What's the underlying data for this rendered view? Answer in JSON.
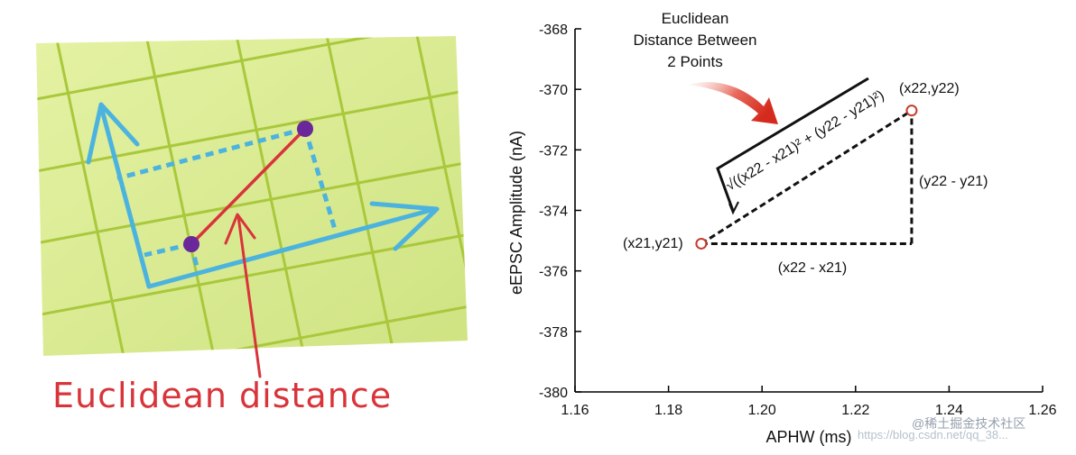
{
  "left_panel": {
    "caption": "Euclidean distance",
    "colors": {
      "paper": "#d7ea8f",
      "grid": "#a9c83c",
      "axes": "#4cb3df",
      "dots": "#69279a",
      "line": "#d8343a",
      "caption": "#d8343a"
    }
  },
  "right_panel": {
    "annotation_lines": [
      "Euclidean",
      "Distance Between",
      "2 Points"
    ],
    "point1_label": "(x21,y21)",
    "point2_label": "(x22,y22)",
    "dx_label": "(x22 - x21)",
    "dy_label": "(y22 - y21)",
    "formula_text": "√((x22 - x21)² + (y22 - y21)²)",
    "colors": {
      "point": "#c83a2c",
      "arrow": "#d6372b",
      "dash": "#111111"
    }
  },
  "chart_data": {
    "type": "scatter",
    "xlabel": "APHW (ms)",
    "ylabel": "eEPSC Amplitude (nA)",
    "xlim": [
      1.16,
      1.26
    ],
    "ylim": [
      -380,
      -368
    ],
    "xticks": [
      "1.16",
      "1.18",
      "1.20",
      "1.22",
      "1.24",
      "1.26"
    ],
    "yticks": [
      "-368",
      "-370",
      "-372",
      "-374",
      "-376",
      "-378",
      "-380"
    ],
    "points": [
      {
        "label": "(x21,y21)",
        "x": 1.187,
        "y": -375.1
      },
      {
        "label": "(x22,y22)",
        "x": 1.232,
        "y": -370.7
      }
    ],
    "grid": false
  },
  "watermarks": [
    "https://blog.csdn.net/qq_38...",
    "@稀土掘金技术社区"
  ]
}
